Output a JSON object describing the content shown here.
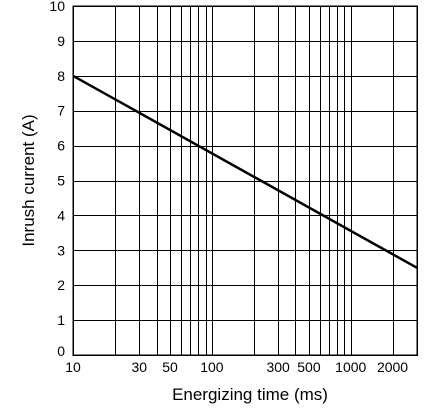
{
  "chart_data": {
    "type": "line",
    "xlabel": "Energizing time (ms)",
    "ylabel": "Inrush current  (A)",
    "x_scale": "log",
    "xlim": [
      10,
      3000
    ],
    "ylim": [
      0,
      10
    ],
    "grid": true,
    "x_tick_labels": [
      {
        "value": 10,
        "label": "10"
      },
      {
        "value": 30,
        "label": "30"
      },
      {
        "value": 50,
        "label": "50"
      },
      {
        "value": 100,
        "label": "100"
      },
      {
        "value": 300,
        "label": "300"
      },
      {
        "value": 500,
        "label": "500"
      },
      {
        "value": 1000,
        "label": "1000"
      },
      {
        "value": 2000,
        "label": "2000"
      }
    ],
    "x_gridlines": [
      20,
      30,
      40,
      50,
      60,
      70,
      80,
      90,
      100,
      200,
      300,
      400,
      500,
      600,
      700,
      800,
      900,
      1000,
      2000
    ],
    "y_ticks": [
      0,
      1,
      2,
      3,
      4,
      5,
      6,
      7,
      8,
      9,
      10
    ],
    "series": [
      {
        "x": [
          10,
          3000
        ],
        "y": [
          8,
          2.5
        ]
      }
    ]
  }
}
